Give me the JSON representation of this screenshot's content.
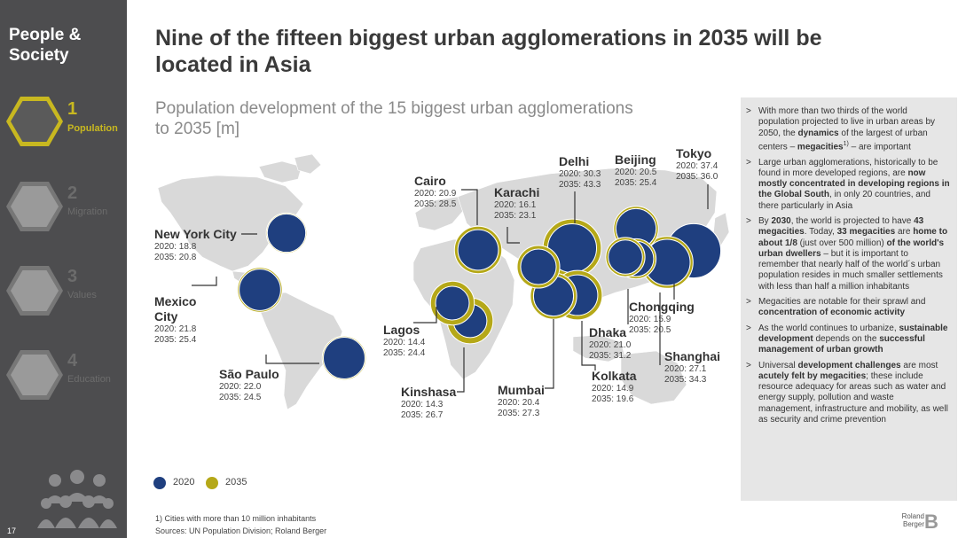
{
  "sidebar": {
    "title_line1": "People &",
    "title_line2": "Society",
    "items": [
      {
        "num": "1",
        "label": "Population",
        "active": true
      },
      {
        "num": "2",
        "label": "Migration",
        "active": false
      },
      {
        "num": "3",
        "label": "Values",
        "active": false
      },
      {
        "num": "4",
        "label": "Education",
        "active": false
      }
    ],
    "page_number": "17"
  },
  "headline_line1": "Nine of the fifteen biggest urban agglomerations in 2035 will be",
  "headline_line2": "located in Asia",
  "subtitle_line1": "Population development of the 15 biggest urban agglomerations",
  "subtitle_line2": "to 2035 [m]",
  "colors": {
    "c2020": "#1f3f7f",
    "c2035": "#b5a818",
    "sidebar": "#4d4d4f",
    "accent": "#c8b820",
    "map": "#d9d9d9"
  },
  "chart_data": {
    "type": "bubble-map",
    "title": "Population development of the 15 biggest urban agglomerations to 2035 [m]",
    "series": [
      {
        "name": "2020"
      },
      {
        "name": "2035"
      }
    ],
    "cities": [
      {
        "name": "New York City",
        "v2020": 18.8,
        "v2035": 20.8,
        "l2020": "2020: 18.8",
        "l2035": "2035: 20.8"
      },
      {
        "name": "Mexico City",
        "v2020": 21.8,
        "v2035": 25.4,
        "l2020": "2020: 21.8",
        "l2035": "2035: 25.4"
      },
      {
        "name": "São Paulo",
        "v2020": 22.0,
        "v2035": 24.5,
        "l2020": "2020: 22.0",
        "l2035": "2035: 24.5"
      },
      {
        "name": "Cairo",
        "v2020": 20.9,
        "v2035": 28.5,
        "l2020": "2020: 20.9",
        "l2035": "2035: 28.5"
      },
      {
        "name": "Lagos",
        "v2020": 14.4,
        "v2035": 24.4,
        "l2020": "2020: 14.4",
        "l2035": "2035: 24.4"
      },
      {
        "name": "Kinshasa",
        "v2020": 14.3,
        "v2035": 26.7,
        "l2020": "2020: 14.3",
        "l2035": "2035: 26.7"
      },
      {
        "name": "Karachi",
        "v2020": 16.1,
        "v2035": 23.1,
        "l2020": "2020: 16.1",
        "l2035": "2035: 23.1"
      },
      {
        "name": "Mumbai",
        "v2020": 20.4,
        "v2035": 27.3,
        "l2020": "2020: 20.4",
        "l2035": "2035: 27.3"
      },
      {
        "name": "Delhi",
        "v2020": 30.3,
        "v2035": 43.3,
        "l2020": "2020: 30.3",
        "l2035": "2035: 43.3"
      },
      {
        "name": "Dhaka",
        "v2020": 21.0,
        "v2035": 31.2,
        "l2020": "2020: 21.0",
        "l2035": "2035: 31.2"
      },
      {
        "name": "Kolkata",
        "v2020": 14.9,
        "v2035": 19.6,
        "l2020": "2020: 14.9",
        "l2035": "2035: 19.6"
      },
      {
        "name": "Beijing",
        "v2020": 20.5,
        "v2035": 25.4,
        "l2020": "2020: 20.5",
        "l2035": "2035: 25.4"
      },
      {
        "name": "Chongqing",
        "v2020": 15.9,
        "v2035": 20.5,
        "l2020": "2020: 15.9",
        "l2035": "2035: 20.5"
      },
      {
        "name": "Shanghai",
        "v2020": 27.1,
        "v2035": 34.3,
        "l2020": "2020: 27.1",
        "l2035": "2035: 34.3"
      },
      {
        "name": "Tokyo",
        "v2020": 37.4,
        "v2035": 36.0,
        "l2020": "2020: 37.4",
        "l2035": "2035: 36.0"
      }
    ]
  },
  "legend": {
    "label2020": "2020",
    "label2035": "2035"
  },
  "footnote1": "1) Cities with more than 10 million inhabitants",
  "footnote2": "Sources: UN Population Division; Roland Berger",
  "panel": {
    "b1_a": "With more than two thirds of the world population projected to live in urban areas by 2050, the ",
    "b1_b": "dynamics",
    "b1_c": " of the largest of urban centers – ",
    "b1_d": "megacities",
    "b1_sup": "1)",
    "b1_e": " – are important",
    "b2_a": "Large urban agglomerations, historically to be found in more developed regions, are ",
    "b2_b": "now mostly concentrated in developing regions in the Global South",
    "b2_c": ", in only 20 countries, and there particularly in Asia",
    "b3_a": "By ",
    "b3_b": "2030",
    "b3_c": ", the world is projected to have ",
    "b3_d": "43 megacities",
    "b3_e": ". Today, ",
    "b3_f": "33 megacities",
    "b3_g": " are ",
    "b3_h": "home to about 1/8",
    "b3_i": " (just over 500 million) ",
    "b3_j": "of the world's urban dwellers",
    "b3_k": " – but it is important to remember that nearly half of the world´s urban population resides in much smaller settlements with less than half a million inhabitants",
    "b4_a": "Megacities are notable for their sprawl and ",
    "b4_b": "concentration of economic activity",
    "b5_a": "As the world continues to urbanize, ",
    "b5_b": "sustainable development",
    "b5_c": " depends on the ",
    "b5_d": "successful management of urban growth",
    "b6_a": "Universal ",
    "b6_b": "development challenges",
    "b6_c": " are most ",
    "b6_d": "acutely felt by megacities",
    "b6_e": "; these include resource adequacy for areas such as water and energy supply, pollution and waste management, infrastructure and mobility, as well as security and crime prevention"
  },
  "brand": "Roland Berger"
}
